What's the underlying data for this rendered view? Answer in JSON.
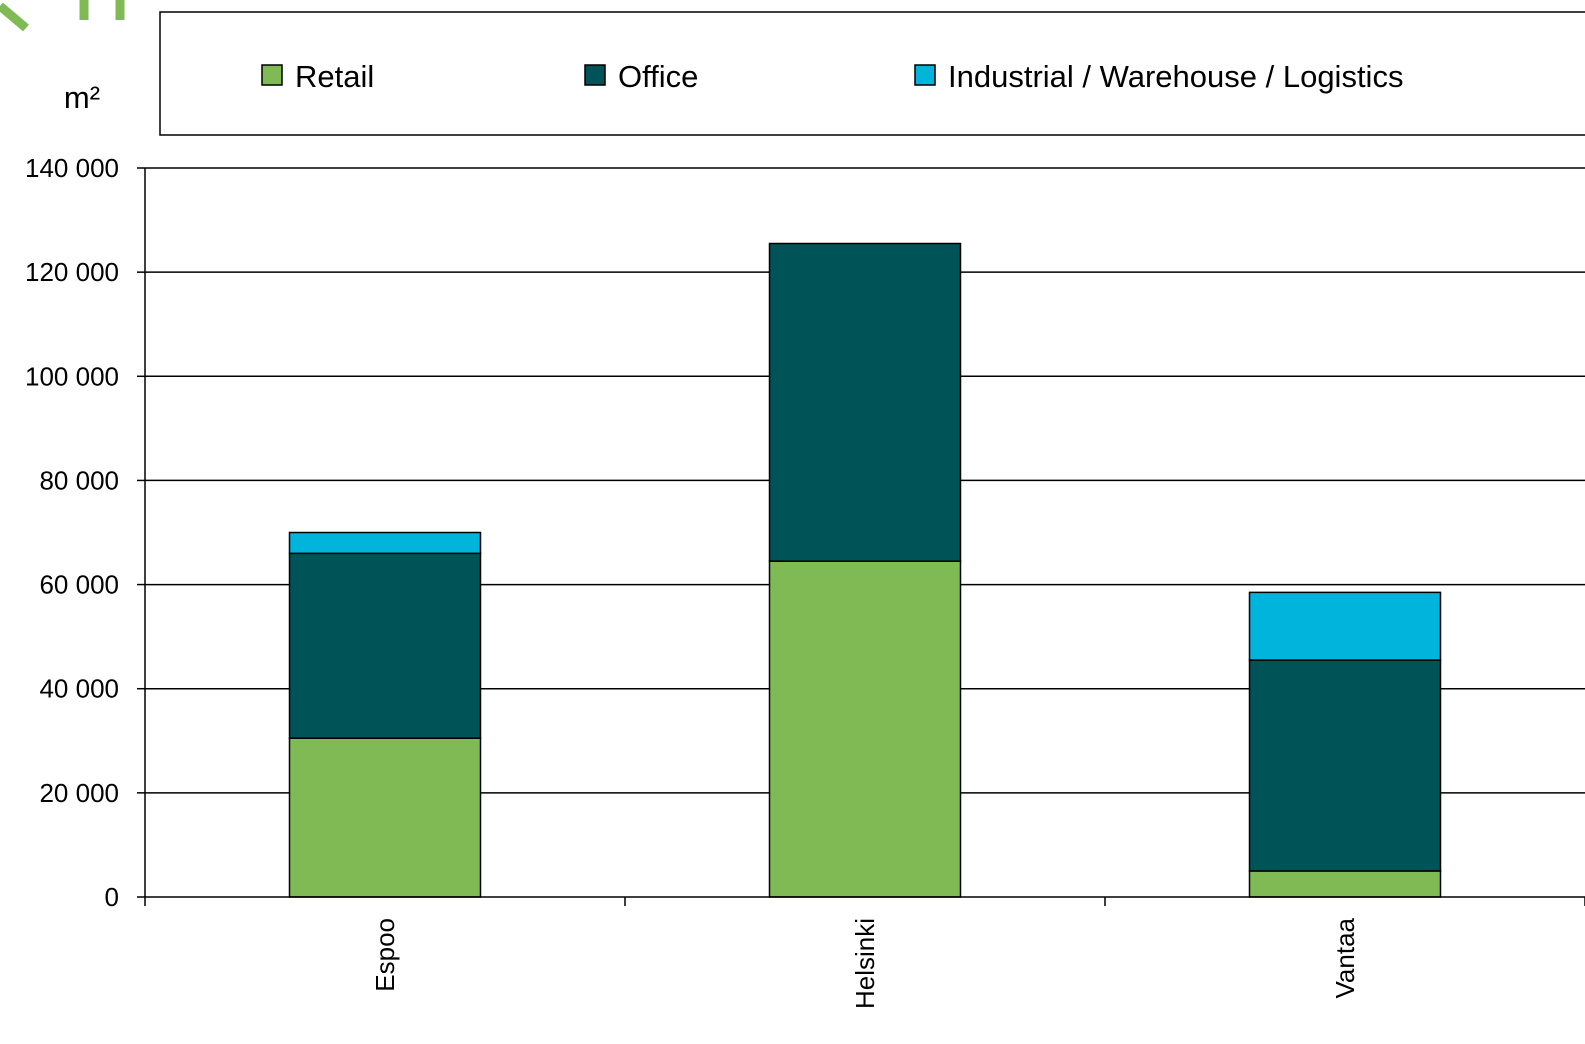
{
  "chart_data": {
    "type": "bar",
    "stacked": true,
    "title": "",
    "xlabel": "",
    "ylabel": "m²",
    "ylim": [
      0,
      140000
    ],
    "yticks": [
      "0",
      "20 000",
      "40 000",
      "60 000",
      "80 000",
      "100 000",
      "120 000",
      "140 000"
    ],
    "ytick_values": [
      0,
      20000,
      40000,
      60000,
      80000,
      100000,
      120000,
      140000
    ],
    "grid": true,
    "legend_position": "top",
    "categories": [
      "Espoo",
      "Helsinki",
      "Vantaa"
    ],
    "series": [
      {
        "name": "Retail",
        "color": "#7fba55",
        "values": [
          30500,
          64500,
          5000
        ]
      },
      {
        "name": "Office",
        "color": "#005356",
        "values": [
          35500,
          61000,
          40500
        ]
      },
      {
        "name": "Industrial / Warehouse / Logistics",
        "color": "#00b4dc",
        "values": [
          4000,
          0,
          13000
        ]
      }
    ]
  },
  "colors": {
    "logo_green": "#7fba55",
    "axis": "#000000",
    "background": "#ffffff"
  }
}
